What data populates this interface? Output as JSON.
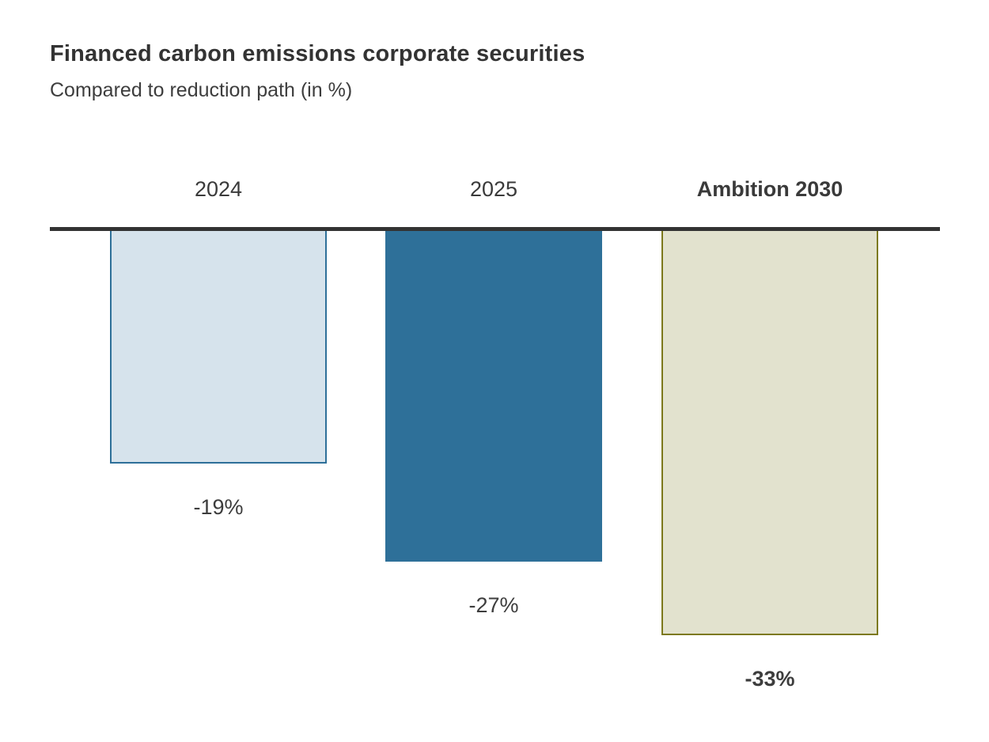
{
  "header": {
    "title": "Financed carbon emissions corporate securities",
    "subtitle": "Compared to reduction path (in %)"
  },
  "chart_data": {
    "type": "bar",
    "title": "Financed carbon emissions corporate securities",
    "subtitle": "Compared to reduction path (in %)",
    "categories": [
      "2024",
      "2025",
      "Ambition 2030"
    ],
    "values": [
      -19,
      -27,
      -33
    ],
    "value_labels": [
      "-19%",
      "-27%",
      "-33%"
    ],
    "xlabel": "",
    "ylabel": "",
    "ylim": [
      -35,
      0
    ],
    "baseline_value": 0,
    "grid": false,
    "legend": "none",
    "orientation": "vertical-hanging-below-baseline",
    "emphasized_category_index": 2,
    "axis_color": "#333333",
    "text_color": "#3d3d3d",
    "bar_styles": [
      {
        "fill": "#d6e3ec",
        "border": "#2e7099",
        "bold_labels": false
      },
      {
        "fill": "#2e7099",
        "border": "#2e7099",
        "bold_labels": false
      },
      {
        "fill": "#e2e2ce",
        "border": "#7c791c",
        "bold_labels": true
      }
    ]
  }
}
